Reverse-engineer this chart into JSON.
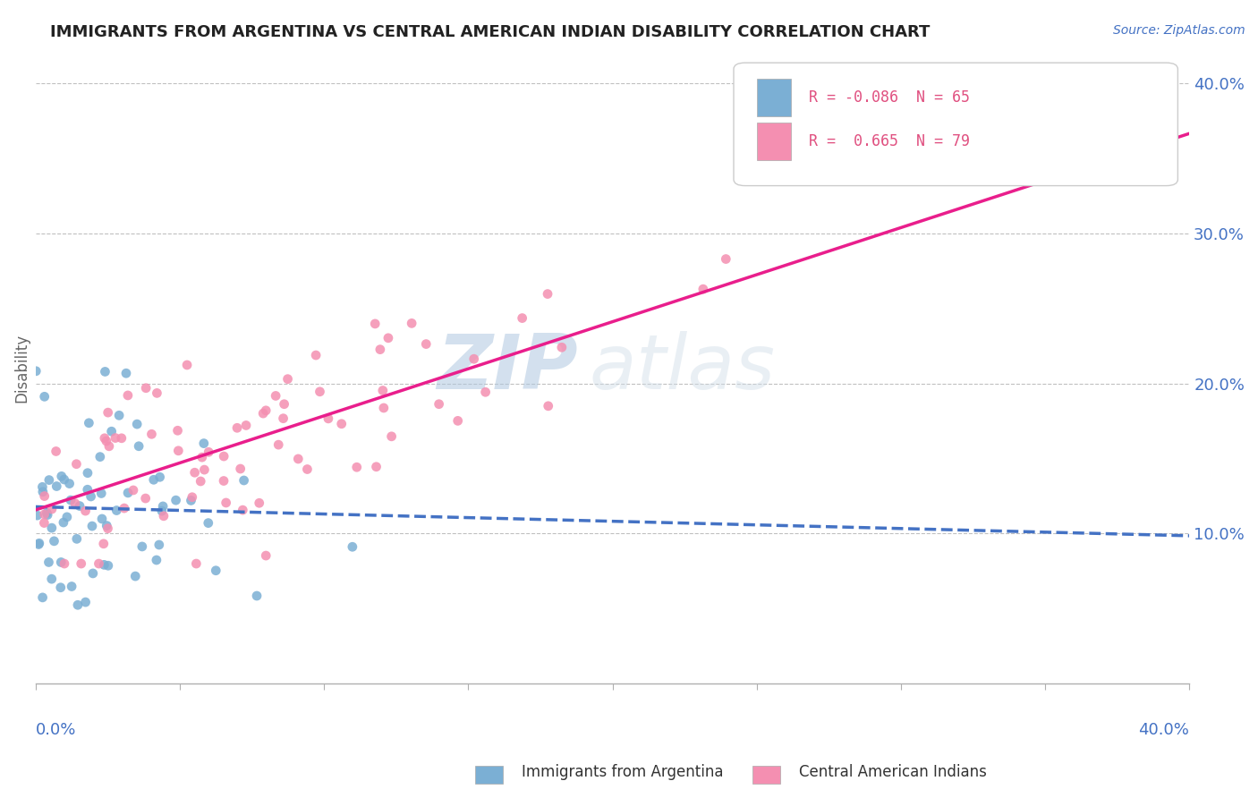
{
  "title": "IMMIGRANTS FROM ARGENTINA VS CENTRAL AMERICAN INDIAN DISABILITY CORRELATION CHART",
  "source": "Source: ZipAtlas.com",
  "ylabel": "Disability",
  "xlim": [
    0.0,
    0.4
  ],
  "ylim": [
    0.0,
    0.42
  ],
  "right_yticks": [
    0.1,
    0.2,
    0.3,
    0.4
  ],
  "right_yticklabels": [
    "10.0%",
    "20.0%",
    "30.0%",
    "40.0%"
  ],
  "argentina_color": "#7bafd4",
  "argentina_line_color": "#4472c4",
  "cai_color": "#f48fb1",
  "cai_line_color": "#e91e8c",
  "watermark_zip": "ZIP",
  "watermark_atlas": "atlas",
  "watermark_color": "#c8ddf0",
  "background_color": "#ffffff",
  "grid_color": "#c0c0c0",
  "R_argentina": -0.086,
  "N_argentina": 65,
  "R_cai": 0.665,
  "N_cai": 79,
  "title_color": "#222222",
  "source_color": "#4472c4",
  "axis_label_color": "#4472c4",
  "ylabel_color": "#666666"
}
